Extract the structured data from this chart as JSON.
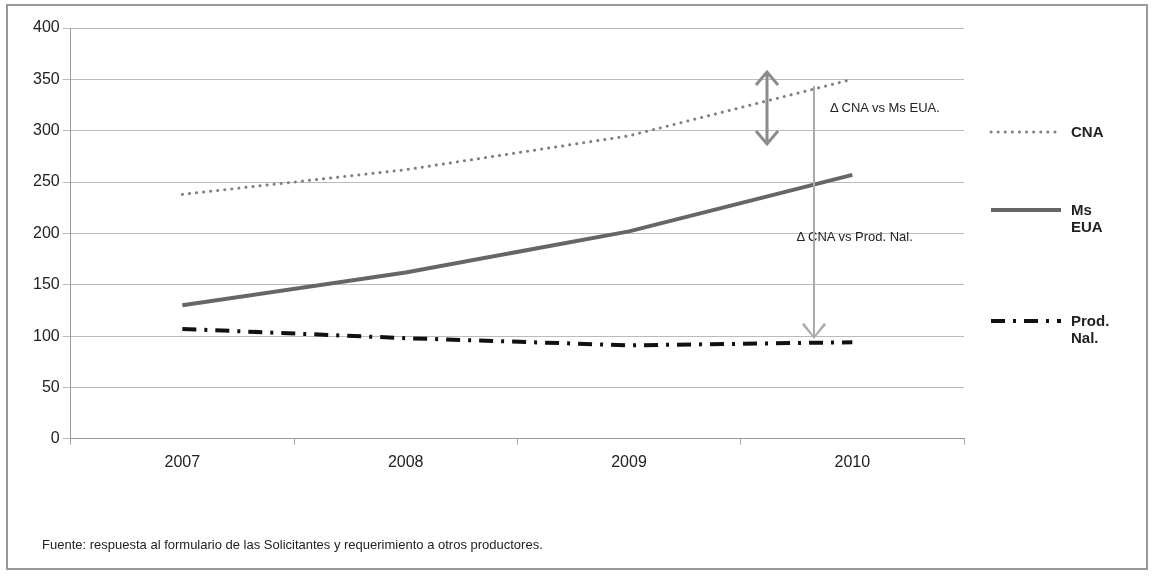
{
  "chart_data": {
    "type": "line",
    "categories": [
      "2007",
      "2008",
      "2009",
      "2010"
    ],
    "series": [
      {
        "name": "CNA",
        "color": "#808080",
        "line_style": "dotted",
        "values": [
          238,
          262,
          295,
          350
        ]
      },
      {
        "name": "Ms EUA",
        "color": "#666666",
        "line_style": "solid",
        "values": [
          130,
          162,
          202,
          257
        ]
      },
      {
        "name": "Prod. Nal.",
        "color": "#111111",
        "line_style": "dashdot",
        "values": [
          107,
          98,
          91,
          94
        ]
      }
    ],
    "ylim": [
      0,
      400
    ],
    "yticks": [
      0,
      50,
      100,
      150,
      200,
      250,
      300,
      350,
      400
    ],
    "grid": "y",
    "legend": "right",
    "marker": "none",
    "annotations": [
      {
        "text": "Δ CNA vs Ms EUA.",
        "x": "2010",
        "y": 350
      },
      "Δ CNA vs Prod. Nal.",
      "Fuente: respuesta al formulario de las Solicitantes y requerimiento a otros productores."
    ]
  }
}
